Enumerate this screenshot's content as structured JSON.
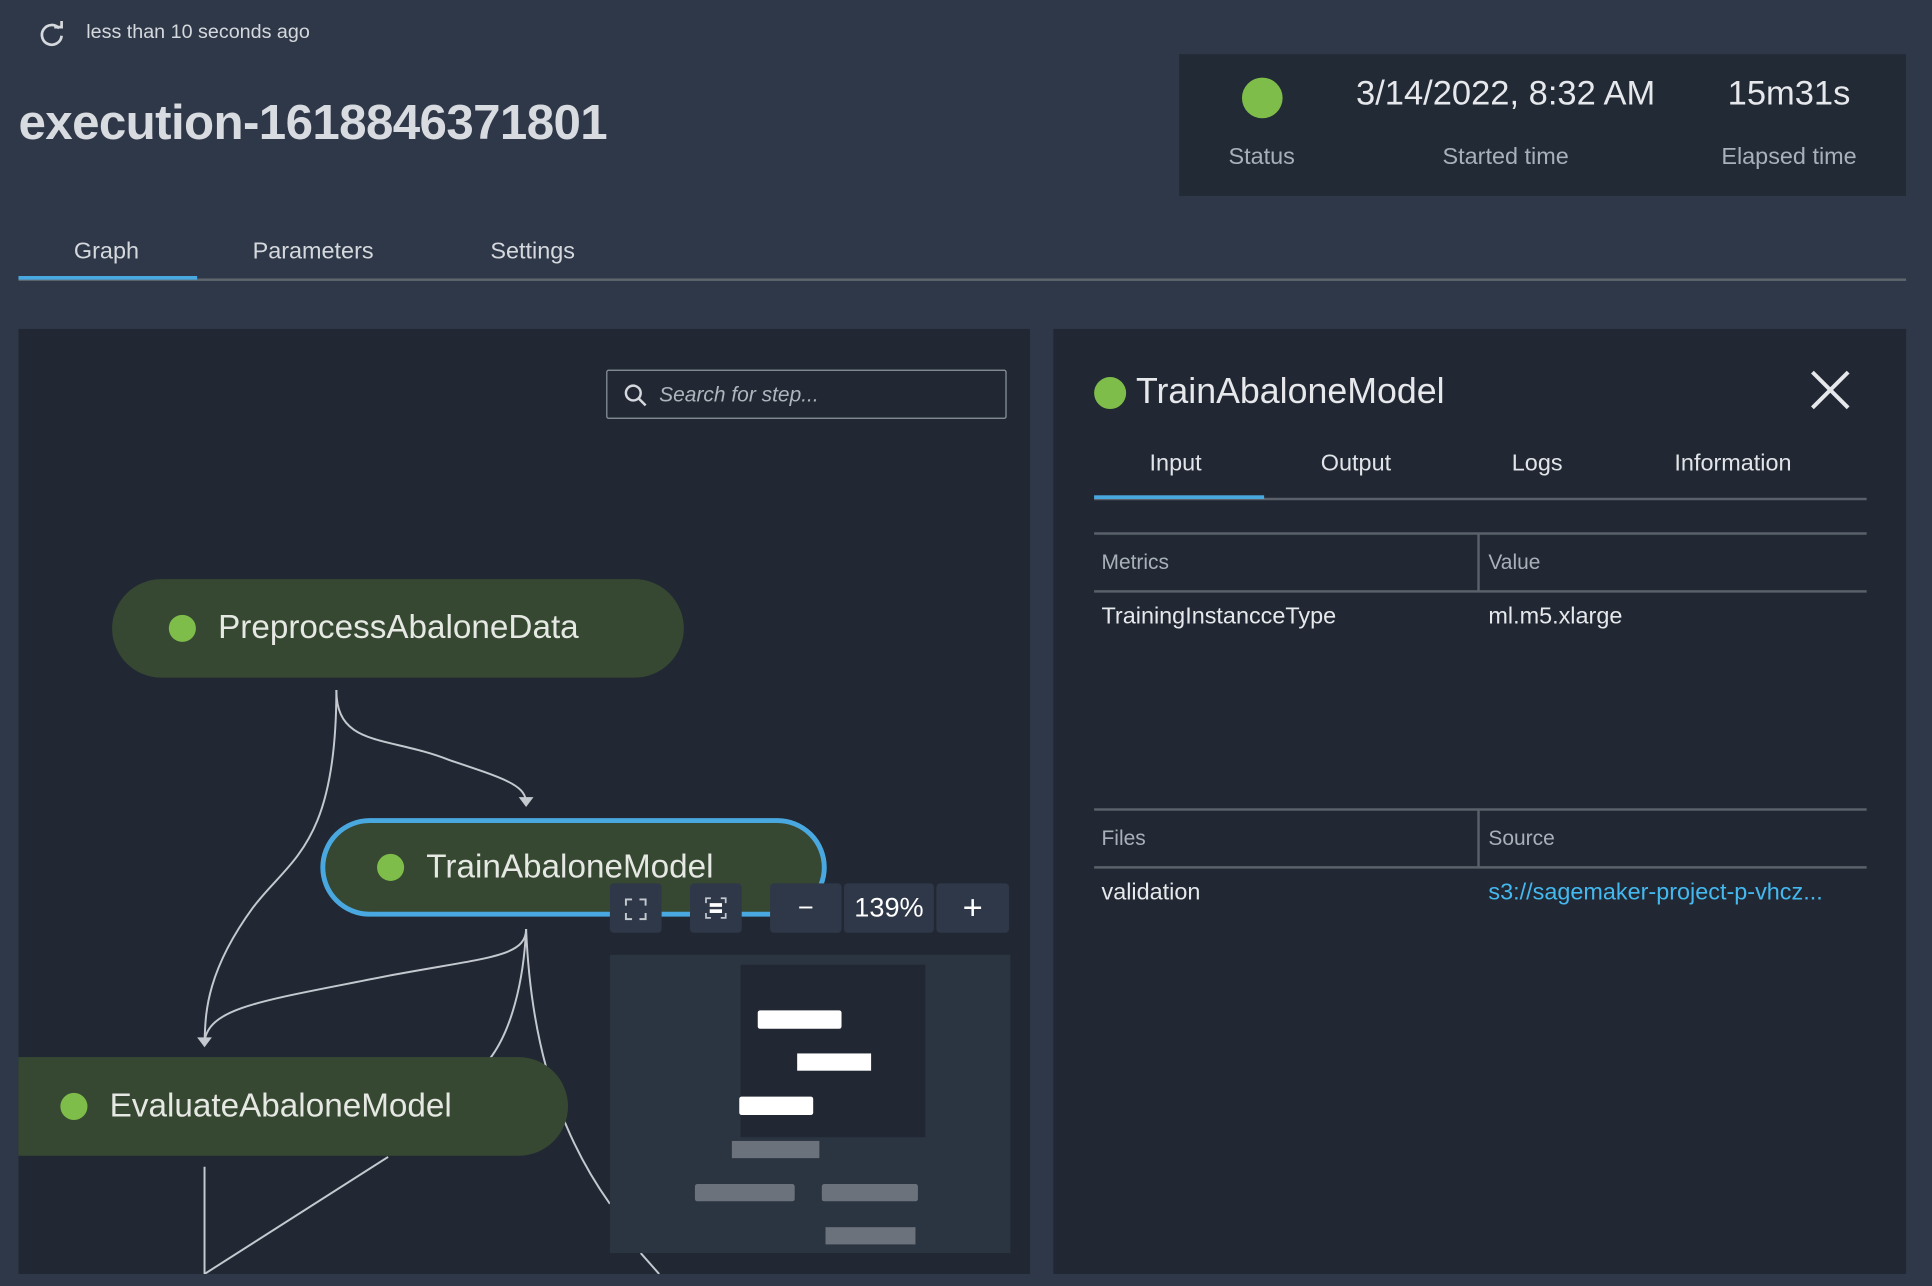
{
  "header": {
    "refresh_text": "less than 10 seconds ago",
    "title": "execution-1618846371801"
  },
  "status_summary": {
    "status_label": "Status",
    "status_color": "#7ebd4a",
    "started_time": "3/14/2022, 8:32 AM",
    "started_label": "Started time",
    "elapsed_time": "15m31s",
    "elapsed_label": "Elapsed time"
  },
  "tabs": [
    {
      "label": "Graph",
      "active": true
    },
    {
      "label": "Parameters",
      "active": false
    },
    {
      "label": "Settings",
      "active": false
    }
  ],
  "graph": {
    "search_placeholder": "Search for step...",
    "nodes": [
      {
        "label": "PreprocessAbaloneData",
        "status": "succeeded",
        "selected": false
      },
      {
        "label": "TrainAbaloneModel",
        "status": "succeeded",
        "selected": true
      },
      {
        "label": "EvaluateAbaloneModel",
        "status": "succeeded",
        "selected": false
      }
    ],
    "zoom_level": "139%",
    "zoom_out_label": "−",
    "zoom_in_label": "+"
  },
  "detail": {
    "title": "TrainAbaloneModel",
    "tabs": [
      {
        "label": "Input",
        "active": true
      },
      {
        "label": "Output",
        "active": false
      },
      {
        "label": "Logs",
        "active": false
      },
      {
        "label": "Information",
        "active": false
      }
    ],
    "metrics_table": {
      "headers": [
        "Metrics",
        "Value"
      ],
      "rows": [
        [
          "TrainingInstancceType",
          "ml.m5.xlarge"
        ]
      ]
    },
    "files_table": {
      "headers": [
        "Files",
        "Source"
      ],
      "rows": [
        [
          "validation",
          "s3://sagemaker-project-p-vhcz..."
        ]
      ]
    },
    "link_color": "#44b9f0"
  }
}
